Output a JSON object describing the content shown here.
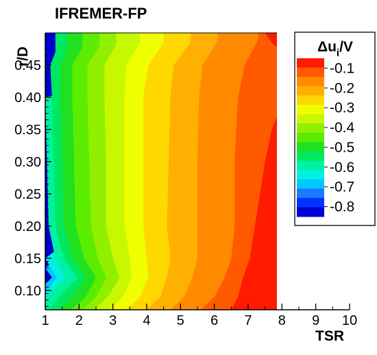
{
  "chart_data": {
    "type": "heatmap",
    "title": "IFREMER-FP",
    "xlabel": "TSR",
    "ylabel": "r/D",
    "x_ticks": [
      "1",
      "2",
      "3",
      "4",
      "5",
      "6",
      "7",
      "8",
      "9",
      "10"
    ],
    "y_ticks": [
      "0.10",
      "0.15",
      "0.20",
      "0.25",
      "0.30",
      "0.35",
      "0.40",
      "0.45"
    ],
    "xlim": [
      1,
      10
    ],
    "ylim": [
      0.07,
      0.5
    ],
    "data_extent_x": [
      1,
      7.85
    ],
    "colorbar": {
      "title": "Δu_i/V",
      "title_main": "Δu",
      "title_sub": "i",
      "title_tail": "/V",
      "levels": [
        -0.85,
        -0.8,
        -0.75,
        -0.7,
        -0.65,
        -0.6,
        -0.55,
        -0.5,
        -0.45,
        -0.4,
        -0.35,
        -0.3,
        -0.25,
        -0.2,
        -0.15,
        -0.1,
        -0.05
      ],
      "colors": [
        "#0000d6",
        "#0033ff",
        "#1a7bff",
        "#00c8ff",
        "#00f2de",
        "#00f2a0",
        "#00e860",
        "#20e020",
        "#5cec00",
        "#90f000",
        "#c8f800",
        "#f0ff00",
        "#ffd800",
        "#ffb000",
        "#ff8a00",
        "#ff5a00",
        "#ff1a00"
      ],
      "tick_values": [
        -0.1,
        -0.2,
        -0.3,
        -0.4,
        -0.5,
        -0.6,
        -0.7,
        -0.8
      ],
      "tick_labels": [
        "-0.1",
        "-0.2",
        "-0.3",
        "-0.4",
        "-0.5",
        "-0.6",
        "-0.7",
        "-0.8"
      ]
    },
    "contour_boundaries": [
      {
        "level": -0.75,
        "points": [
          [
            1,
            0.11
          ],
          [
            1.2,
            0.12
          ],
          [
            1,
            0.135
          ]
        ]
      },
      {
        "level": -0.7,
        "points": [
          [
            1,
            0.095
          ],
          [
            1.35,
            0.12
          ],
          [
            1,
            0.15
          ]
        ]
      },
      {
        "level": -0.65,
        "points": [
          [
            1,
            0.09
          ],
          [
            1.4,
            0.11
          ],
          [
            1.6,
            0.12
          ],
          [
            1.3,
            0.15
          ],
          [
            1.1,
            0.2
          ],
          [
            1.05,
            0.3
          ],
          [
            1,
            0.4
          ]
        ]
      },
      {
        "level": -0.6,
        "points": [
          [
            1.1,
            0.07
          ],
          [
            1.4,
            0.09
          ],
          [
            1.95,
            0.12
          ],
          [
            1.55,
            0.15
          ],
          [
            1.3,
            0.2
          ],
          [
            1.25,
            0.3
          ],
          [
            1.2,
            0.4
          ],
          [
            1.15,
            0.45
          ],
          [
            1.3,
            0.47
          ]
        ]
      },
      {
        "level": -0.55,
        "points": [
          [
            1.4,
            0.07
          ],
          [
            1.8,
            0.09
          ],
          [
            2.2,
            0.12
          ],
          [
            1.8,
            0.15
          ],
          [
            1.55,
            0.2
          ],
          [
            1.5,
            0.3
          ],
          [
            1.45,
            0.4
          ],
          [
            1.45,
            0.45
          ],
          [
            1.65,
            0.475
          ]
        ]
      },
      {
        "level": -0.5,
        "points": [
          [
            1.75,
            0.07
          ],
          [
            2.2,
            0.09
          ],
          [
            2.5,
            0.12
          ],
          [
            2.15,
            0.15
          ],
          [
            1.9,
            0.2
          ],
          [
            1.85,
            0.3
          ],
          [
            1.8,
            0.4
          ],
          [
            1.8,
            0.45
          ],
          [
            2.1,
            0.478
          ]
        ]
      },
      {
        "level": -0.45,
        "points": [
          [
            2.1,
            0.07
          ],
          [
            2.5,
            0.09
          ],
          [
            2.8,
            0.12
          ],
          [
            2.55,
            0.15
          ],
          [
            2.35,
            0.2
          ],
          [
            2.3,
            0.3
          ],
          [
            2.25,
            0.4
          ],
          [
            2.25,
            0.45
          ],
          [
            2.6,
            0.48
          ]
        ]
      },
      {
        "level": -0.4,
        "points": [
          [
            2.45,
            0.07
          ],
          [
            2.85,
            0.09
          ],
          [
            3.2,
            0.12
          ],
          [
            3,
            0.15
          ],
          [
            2.8,
            0.2
          ],
          [
            2.8,
            0.3
          ],
          [
            2.75,
            0.4
          ],
          [
            2.75,
            0.45
          ],
          [
            3.1,
            0.482
          ]
        ]
      },
      {
        "level": -0.35,
        "points": [
          [
            2.9,
            0.07
          ],
          [
            3.3,
            0.09
          ],
          [
            3.55,
            0.12
          ],
          [
            3.5,
            0.15
          ],
          [
            3.35,
            0.2
          ],
          [
            3.35,
            0.3
          ],
          [
            3.35,
            0.4
          ],
          [
            3.4,
            0.45
          ],
          [
            3.8,
            0.485
          ]
        ]
      },
      {
        "level": -0.3,
        "points": [
          [
            3.4,
            0.07
          ],
          [
            3.8,
            0.09
          ],
          [
            4.05,
            0.12
          ],
          [
            4,
            0.15
          ],
          [
            3.9,
            0.2
          ],
          [
            3.9,
            0.3
          ],
          [
            3.9,
            0.4
          ],
          [
            4.05,
            0.45
          ],
          [
            4.5,
            0.485
          ]
        ]
      },
      {
        "level": -0.25,
        "points": [
          [
            4,
            0.07
          ],
          [
            4.4,
            0.09
          ],
          [
            4.6,
            0.12
          ],
          [
            4.7,
            0.15
          ],
          [
            4.6,
            0.2
          ],
          [
            4.65,
            0.3
          ],
          [
            4.7,
            0.4
          ],
          [
            4.8,
            0.45
          ],
          [
            5.3,
            0.486
          ]
        ]
      },
      {
        "level": -0.2,
        "points": [
          [
            4.7,
            0.07
          ],
          [
            5.1,
            0.09
          ],
          [
            5.35,
            0.12
          ],
          [
            5.5,
            0.15
          ],
          [
            5.5,
            0.2
          ],
          [
            5.5,
            0.3
          ],
          [
            5.55,
            0.4
          ],
          [
            5.65,
            0.45
          ],
          [
            6.1,
            0.488
          ]
        ]
      },
      {
        "level": -0.15,
        "points": [
          [
            5.6,
            0.07
          ],
          [
            6,
            0.09
          ],
          [
            6.3,
            0.12
          ],
          [
            6.5,
            0.15
          ],
          [
            6.6,
            0.2
          ],
          [
            6.6,
            0.3
          ],
          [
            6.7,
            0.4
          ],
          [
            6.9,
            0.45
          ],
          [
            7.3,
            0.49
          ]
        ]
      },
      {
        "level": -0.1,
        "points": [
          [
            6.5,
            0.07
          ],
          [
            6.7,
            0.09
          ],
          [
            6.85,
            0.12
          ],
          [
            7.05,
            0.15
          ],
          [
            7.2,
            0.2
          ],
          [
            7.35,
            0.25
          ],
          [
            7.5,
            0.3
          ],
          [
            7.7,
            0.35
          ],
          [
            7.85,
            0.37
          ]
        ]
      },
      {
        "level": -0.05,
        "points": [
          [
            7.5,
            0.5
          ],
          [
            7.7,
            0.485
          ],
          [
            7.85,
            0.478
          ]
        ]
      }
    ]
  }
}
